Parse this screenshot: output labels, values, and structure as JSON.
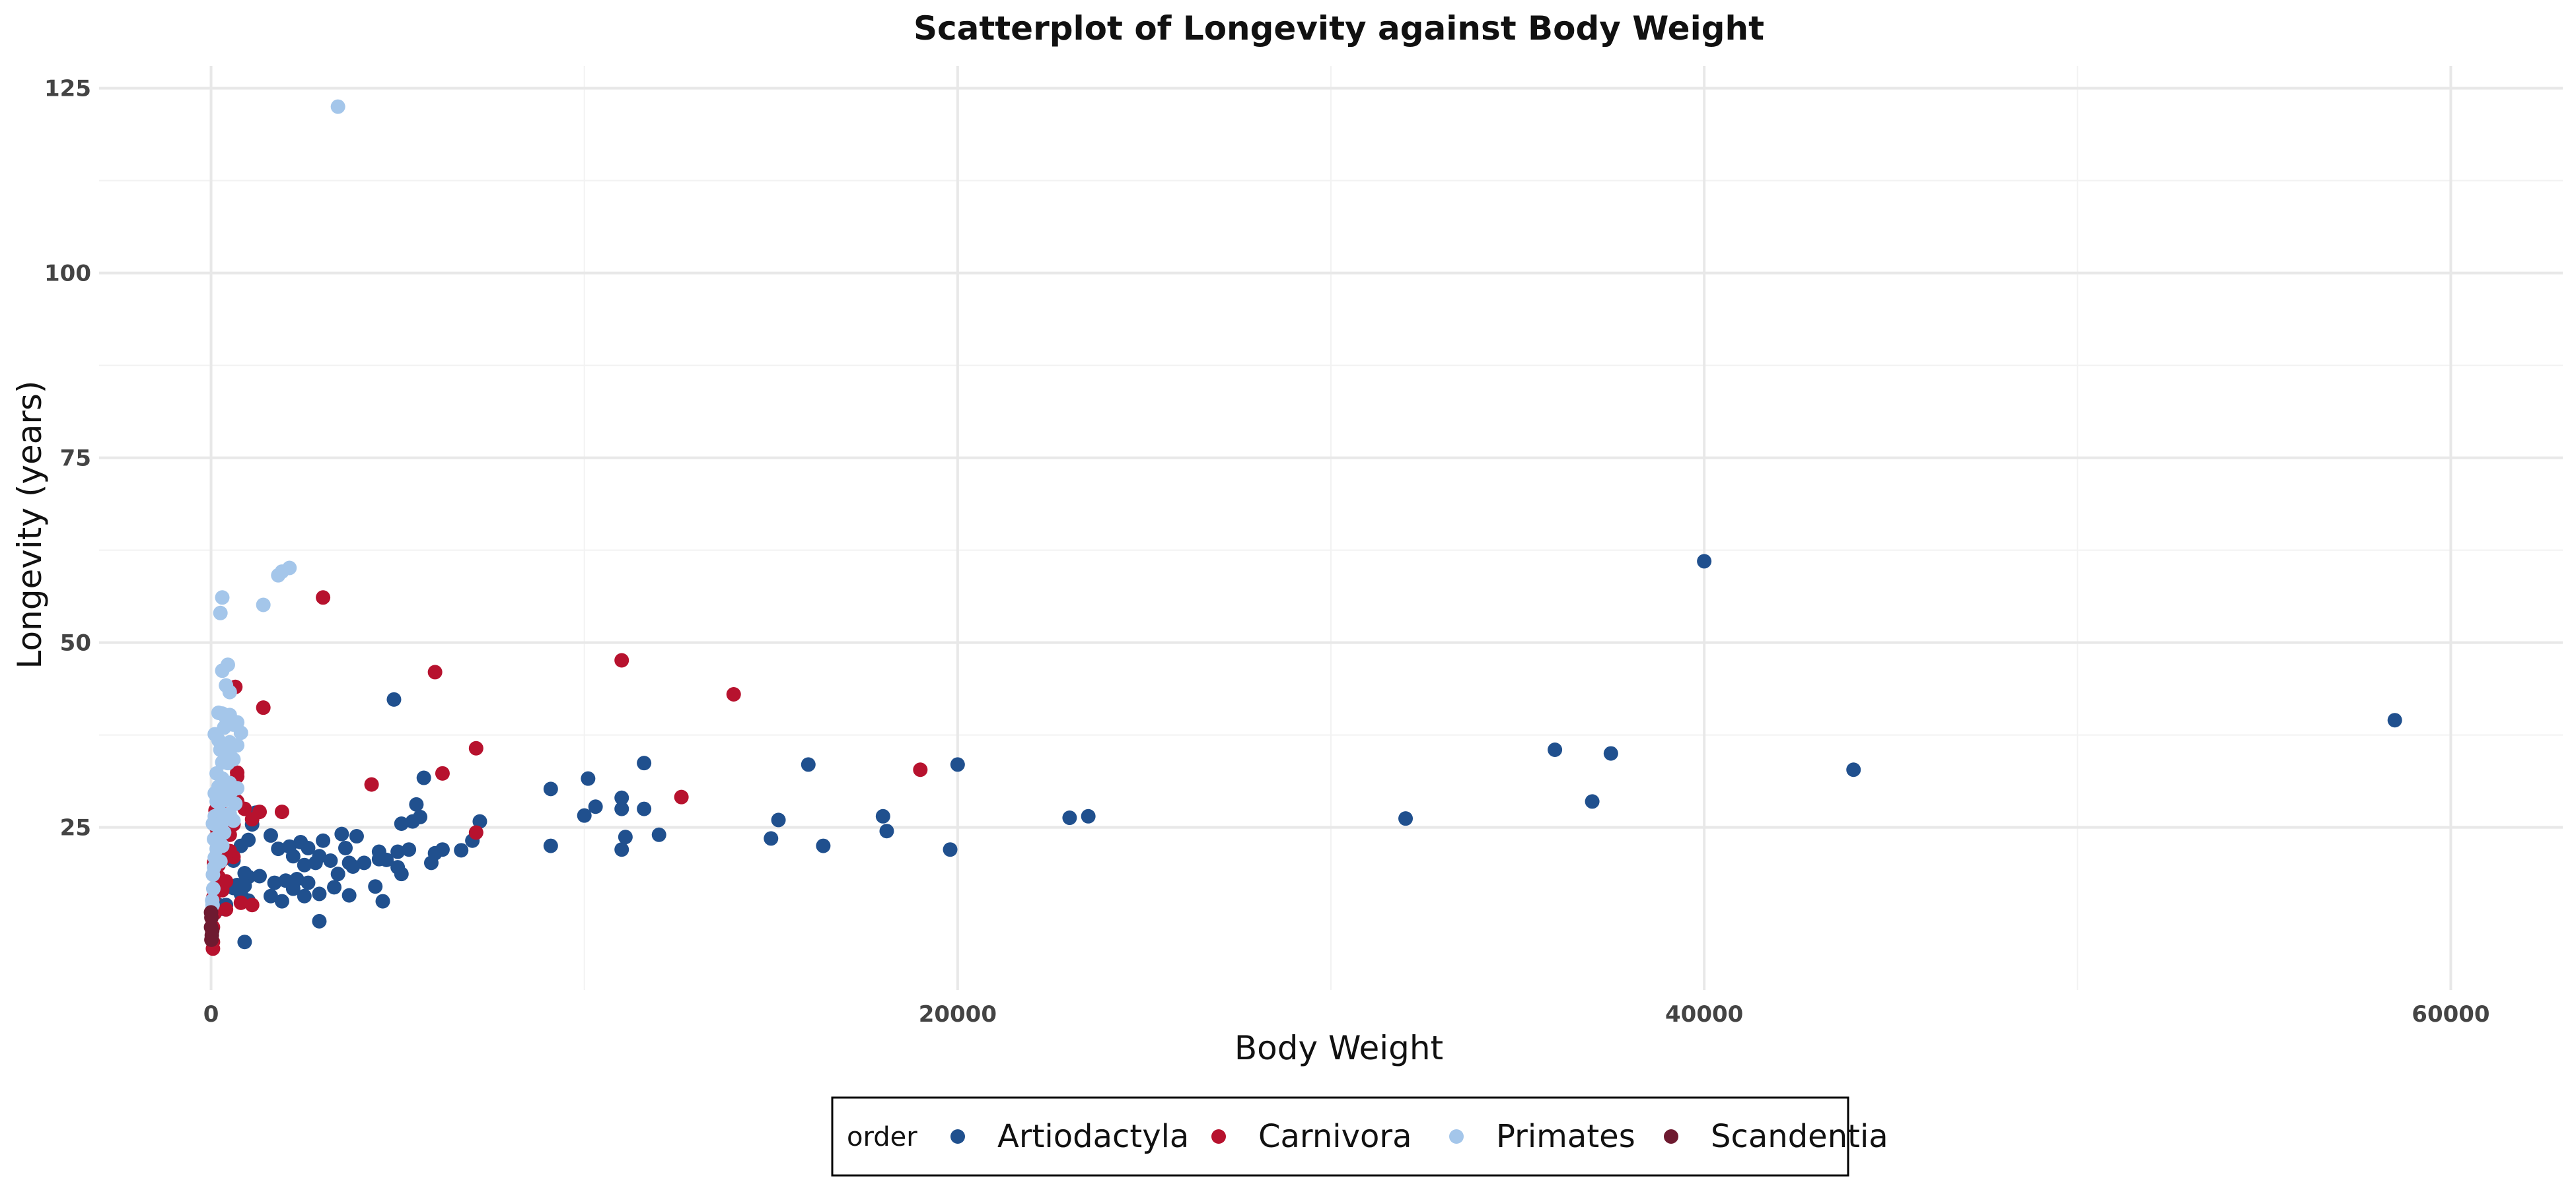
{
  "chart_data": {
    "type": "scatter",
    "title": "Scatterplot of Longevity against Body Weight",
    "xlabel": "Body Weight",
    "ylabel": "Longevity (years)",
    "xlim": [
      -3000,
      63000
    ],
    "ylim": [
      3,
      128
    ],
    "xticks": [
      0,
      20000,
      40000,
      60000
    ],
    "yticks": [
      25,
      50,
      75,
      100,
      125
    ],
    "grid": true,
    "legend": {
      "title": "order",
      "position": "bottom"
    },
    "series": [
      {
        "name": "Artiodactyla",
        "color": "#20508E",
        "points": [
          [
            58500,
            39.5
          ],
          [
            44000,
            32.8
          ],
          [
            40000,
            61
          ],
          [
            37500,
            35
          ],
          [
            37000,
            28.5
          ],
          [
            36000,
            35.5
          ],
          [
            32000,
            26.2
          ],
          [
            23500,
            26.5
          ],
          [
            23000,
            26.3
          ],
          [
            20000,
            33.5
          ],
          [
            19800,
            22
          ],
          [
            18100,
            24.5
          ],
          [
            18000,
            26.5
          ],
          [
            16400,
            22.5
          ],
          [
            16000,
            33.5
          ],
          [
            15200,
            26
          ],
          [
            15000,
            23.5
          ],
          [
            12000,
            24
          ],
          [
            11600,
            27.5
          ],
          [
            11600,
            33.7
          ],
          [
            11100,
            23.7
          ],
          [
            11000,
            29
          ],
          [
            11000,
            27.5
          ],
          [
            11000,
            22
          ],
          [
            10300,
            27.8
          ],
          [
            10100,
            31.6
          ],
          [
            10000,
            26.6
          ],
          [
            9100,
            30.2
          ],
          [
            9100,
            22.5
          ],
          [
            7200,
            25.8
          ],
          [
            7000,
            23.2
          ],
          [
            6700,
            21.9
          ],
          [
            6200,
            22
          ],
          [
            6000,
            21.5
          ],
          [
            5900,
            20.2
          ],
          [
            5700,
            31.7
          ],
          [
            5600,
            26.4
          ],
          [
            5500,
            28.1
          ],
          [
            5400,
            25.8
          ],
          [
            5300,
            22
          ],
          [
            5100,
            25.5
          ],
          [
            5000,
            21.7
          ],
          [
            5100,
            18.7
          ],
          [
            5000,
            19.6
          ],
          [
            4900,
            42.3
          ],
          [
            4700,
            20.6
          ],
          [
            4500,
            21.7
          ],
          [
            4500,
            20.7
          ],
          [
            4400,
            17
          ],
          [
            4600,
            15
          ],
          [
            4100,
            20.2
          ],
          [
            3900,
            23.8
          ],
          [
            3800,
            19.7
          ],
          [
            3700,
            20.2
          ],
          [
            3600,
            22.2
          ],
          [
            3700,
            15.8
          ],
          [
            3500,
            24.1
          ],
          [
            3400,
            18.7
          ],
          [
            3300,
            16.9
          ],
          [
            3200,
            20.5
          ],
          [
            3000,
            23.2
          ],
          [
            2900,
            21.1
          ],
          [
            2900,
            16
          ],
          [
            2900,
            12.3
          ],
          [
            2800,
            20.2
          ],
          [
            2600,
            22.2
          ],
          [
            2600,
            17.5
          ],
          [
            2500,
            19.9
          ],
          [
            2500,
            15.7
          ],
          [
            2400,
            23
          ],
          [
            2300,
            18
          ],
          [
            2200,
            16.7
          ],
          [
            2200,
            21.1
          ],
          [
            2100,
            22.4
          ],
          [
            2000,
            17.8
          ],
          [
            1900,
            15
          ],
          [
            1800,
            22.1
          ],
          [
            1700,
            17.5
          ],
          [
            1600,
            23.9
          ],
          [
            1600,
            15.7
          ],
          [
            1300,
            18.4
          ],
          [
            1200,
            27
          ],
          [
            1100,
            25.4
          ],
          [
            1000,
            23.3
          ],
          [
            1000,
            18.3
          ],
          [
            1000,
            15.1
          ],
          [
            900,
            18.8
          ],
          [
            900,
            17.1
          ],
          [
            900,
            9.5
          ],
          [
            800,
            22.5
          ],
          [
            800,
            16
          ],
          [
            700,
            17.2
          ],
          [
            600,
            20.5
          ],
          [
            600,
            16.8
          ],
          [
            500,
            17
          ],
          [
            400,
            14.5
          ],
          [
            300,
            14
          ],
          [
            200,
            14.5
          ]
        ]
      },
      {
        "name": "Carnivora",
        "color": "#B7122E",
        "points": [
          [
            19000,
            32.8
          ],
          [
            14000,
            43
          ],
          [
            12600,
            29.1
          ],
          [
            11000,
            47.6
          ],
          [
            7100,
            35.7
          ],
          [
            7100,
            24.3
          ],
          [
            6200,
            32.3
          ],
          [
            6000,
            46
          ],
          [
            4300,
            30.8
          ],
          [
            3000,
            56.1
          ],
          [
            1900,
            27.1
          ],
          [
            1400,
            41.2
          ],
          [
            1300,
            27.1
          ],
          [
            1100,
            14.5
          ],
          [
            1100,
            26.1
          ],
          [
            900,
            27.5
          ],
          [
            800,
            14.8
          ],
          [
            700,
            28.5
          ],
          [
            700,
            31.9
          ],
          [
            700,
            32.4
          ],
          [
            600,
            21
          ],
          [
            600,
            25.4
          ],
          [
            600,
            29.2
          ],
          [
            650,
            44
          ],
          [
            500,
            24
          ],
          [
            500,
            21.8
          ],
          [
            400,
            17.7
          ],
          [
            400,
            13.9
          ],
          [
            300,
            16.5
          ],
          [
            300,
            28.5
          ],
          [
            300,
            20.6
          ],
          [
            200,
            19.9
          ],
          [
            200,
            26.2
          ],
          [
            200,
            18.3
          ],
          [
            150,
            24.9
          ],
          [
            100,
            16.8
          ],
          [
            100,
            13.4
          ],
          [
            50,
            8.6
          ],
          [
            50,
            9.5
          ],
          [
            50,
            11.5
          ],
          [
            80,
            20.2
          ],
          [
            100,
            23.5
          ],
          [
            120,
            27.3
          ],
          [
            60,
            15.5
          ]
        ]
      },
      {
        "name": "Primates",
        "color": "#A4C6EA",
        "points": [
          [
            3400,
            122.5
          ],
          [
            2100,
            60.1
          ],
          [
            1900,
            59.6
          ],
          [
            1800,
            59.1
          ],
          [
            1400,
            55.1
          ],
          [
            300,
            56.1
          ],
          [
            250,
            54
          ],
          [
            450,
            47
          ],
          [
            300,
            46.2
          ],
          [
            400,
            44.2
          ],
          [
            500,
            43.3
          ],
          [
            300,
            40.4
          ],
          [
            400,
            39.8
          ],
          [
            500,
            40.2
          ],
          [
            700,
            39.2
          ],
          [
            800,
            37.8
          ],
          [
            600,
            34.2
          ],
          [
            500,
            36.5
          ],
          [
            400,
            35.3
          ],
          [
            300,
            33.8
          ],
          [
            300,
            31.6
          ],
          [
            400,
            28.7
          ],
          [
            200,
            30.5
          ],
          [
            500,
            31
          ],
          [
            500,
            26.8
          ],
          [
            100,
            26.5
          ],
          [
            200,
            25
          ],
          [
            300,
            22.5
          ],
          [
            100,
            20.9
          ],
          [
            50,
            18.6
          ],
          [
            60,
            16.7
          ],
          [
            30,
            15.1
          ],
          [
            80,
            23.4
          ],
          [
            150,
            28.5
          ],
          [
            250,
            35.5
          ],
          [
            350,
            38.5
          ],
          [
            450,
            33.7
          ],
          [
            550,
            29.9
          ],
          [
            650,
            28.2
          ],
          [
            250,
            27
          ],
          [
            150,
            32.3
          ],
          [
            350,
            24.3
          ],
          [
            100,
            37.6
          ],
          [
            200,
            40.5
          ],
          [
            400,
            26.1
          ],
          [
            600,
            38.9
          ],
          [
            700,
            36.1
          ],
          [
            150,
            22.1
          ],
          [
            50,
            25.5
          ],
          [
            100,
            29.6
          ],
          [
            300,
            25.8
          ],
          [
            80,
            19.6
          ],
          [
            40,
            14.5
          ],
          [
            200,
            36.8
          ],
          [
            500,
            34.9
          ],
          [
            600,
            25.9
          ],
          [
            700,
            30.3
          ],
          [
            250,
            20.4
          ],
          [
            350,
            30.1
          ],
          [
            450,
            26.4
          ]
        ]
      },
      {
        "name": "Scandentia",
        "color": "#6E1A30",
        "points": [
          [
            0,
            11.5
          ],
          [
            10,
            12.8
          ],
          [
            20,
            10.4
          ],
          [
            0,
            13.5
          ],
          [
            30,
            11
          ],
          [
            10,
            9.8
          ]
        ]
      }
    ]
  }
}
